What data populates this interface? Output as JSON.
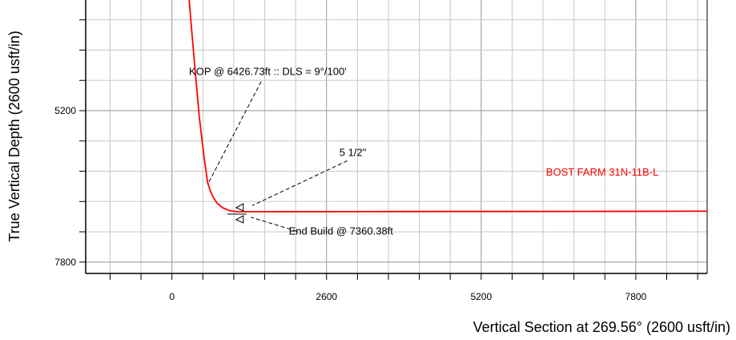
{
  "chart_data": {
    "type": "line",
    "xlabel": "Vertical Section at 269.56° (2600 usft/in)",
    "ylabel": "True Vertical Depth (2600 usft/in)",
    "x_ticks": [
      {
        "value": 0,
        "label": "0"
      },
      {
        "value": 2600,
        "label": "2600"
      },
      {
        "value": 5200,
        "label": "5200"
      },
      {
        "value": 7800,
        "label": "7800"
      }
    ],
    "y_ticks": [
      {
        "value": 5200,
        "label": "5200"
      },
      {
        "value": 7800,
        "label": "7800"
      }
    ],
    "xlim": [
      -1450,
      9000
    ],
    "ylim": [
      7995,
      3300
    ],
    "grid": true,
    "grid_step_minor": 520,
    "colors": {
      "well": "#ff0000",
      "grid": "#c8c8c8",
      "grid_major": "#969696"
    },
    "series": [
      {
        "name": "BOST FARM 31N-11B-L",
        "x": [
          290,
          330,
          390,
          460,
          540,
          600,
          640,
          690,
          760,
          860,
          980,
          1100,
          1500,
          3000,
          5000,
          7000,
          9000
        ],
        "y": [
          3300,
          3800,
          4500,
          5300,
          6000,
          6430,
          6560,
          6680,
          6790,
          6870,
          6920,
          6935,
          6935,
          6933,
          6931,
          6929,
          6927
        ]
      }
    ],
    "annotations": [
      {
        "text": "KOP @ 6426.73ft :: DLS = 9°/100'",
        "x": 1500,
        "y": 4700,
        "leader_to": {
          "x": 620,
          "y": 6430
        }
      },
      {
        "text": "5 1/2\"",
        "x": 2950,
        "y": 6060,
        "leader_to": {
          "x": 1350,
          "y": 6830
        }
      },
      {
        "text": "End Build @ 7360.38ft",
        "x": 2100,
        "y": 7270,
        "leader_to": {
          "x": 1330,
          "y": 7030
        }
      }
    ],
    "casing_marker": {
      "x": 1200,
      "y": 6935
    }
  }
}
